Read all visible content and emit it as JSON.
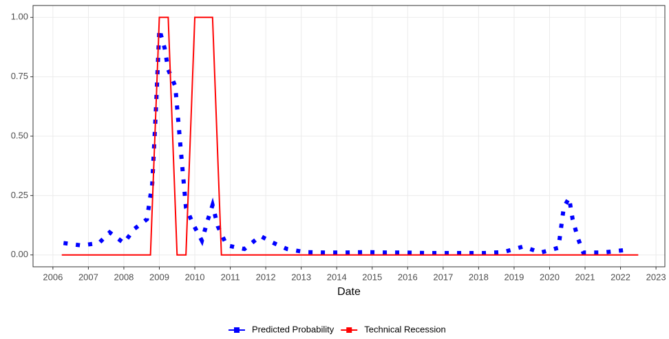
{
  "chart_data": {
    "type": "line",
    "xlabel": "Date",
    "xlim": [
      2005.44,
      2023.25
    ],
    "xticks": [
      2006,
      2007,
      2008,
      2009,
      2010,
      2011,
      2012,
      2013,
      2014,
      2015,
      2016,
      2017,
      2018,
      2019,
      2020,
      2021,
      2022,
      2023
    ],
    "ylim": [
      -0.05,
      1.05
    ],
    "yticks": [
      {
        "value": 0,
        "label": "0.00"
      },
      {
        "value": 0.25,
        "label": "0.25"
      },
      {
        "value": 0.5,
        "label": "0.50"
      },
      {
        "value": 0.75,
        "label": "0.75"
      },
      {
        "value": 1,
        "label": "1.00"
      }
    ],
    "grid": true,
    "legend": "bottom",
    "series": [
      {
        "name": "Predicted Probability",
        "color": "#0000ff",
        "style": "dotted",
        "x": [
          2006.3,
          2006.8,
          2007.3,
          2007.6,
          2008.0,
          2008.3,
          2008.65,
          2008.8,
          2008.9,
          2009.0,
          2009.15,
          2009.25,
          2009.45,
          2009.6,
          2009.75,
          2009.95,
          2010.2,
          2010.35,
          2010.5,
          2010.65,
          2010.9,
          2011.4,
          2011.85,
          2012.15,
          2012.6,
          2013.1,
          2013.7,
          2014.25,
          2014.8,
          2015.4,
          2015.95,
          2016.5,
          2017.05,
          2017.6,
          2018.15,
          2018.7,
          2019.25,
          2019.75,
          2020.25,
          2020.4,
          2020.55,
          2020.65,
          2020.8,
          2020.95,
          2021.5,
          2022.1
        ],
        "values": [
          0.05,
          0.04,
          0.05,
          0.095,
          0.05,
          0.11,
          0.15,
          0.3,
          0.6,
          0.95,
          0.87,
          0.78,
          0.71,
          0.45,
          0.2,
          0.13,
          0.06,
          0.14,
          0.21,
          0.12,
          0.04,
          0.025,
          0.08,
          0.055,
          0.025,
          0.012,
          0.01,
          0.01,
          0.012,
          0.01,
          0.01,
          0.008,
          0.008,
          0.008,
          0.008,
          0.012,
          0.035,
          0.01,
          0.03,
          0.2,
          0.24,
          0.15,
          0.07,
          0.01,
          0.01,
          0.02
        ]
      },
      {
        "name": "Technical Recession",
        "color": "#ff0000",
        "style": "solid",
        "x": [
          2006.25,
          2008.75,
          2009.0,
          2009.25,
          2009.5,
          2009.75,
          2010.0,
          2010.5,
          2010.75,
          2022.5
        ],
        "values": [
          0,
          0,
          1,
          1,
          0,
          0,
          1,
          1,
          0,
          0
        ]
      }
    ]
  }
}
